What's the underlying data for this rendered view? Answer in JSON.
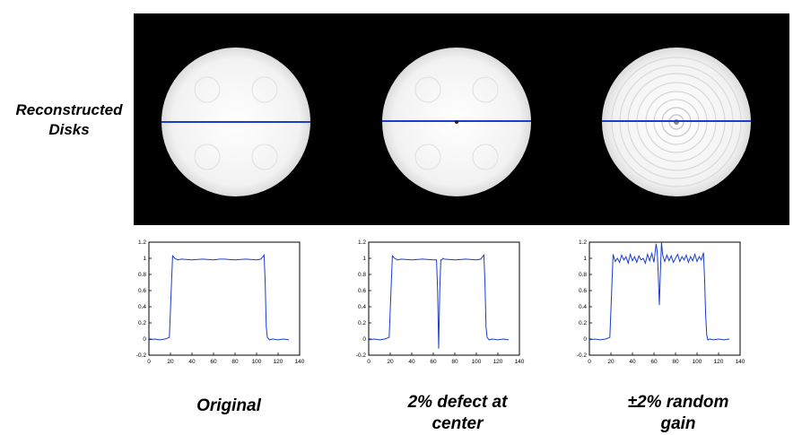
{
  "side_label": {
    "line1": "Reconstructed",
    "line2": "Disks"
  },
  "colors": {
    "profile_line": "#1a3ccf",
    "disk_fill": "#f4f4f4",
    "background": "#000000",
    "axis": "#000000"
  },
  "captions": [
    {
      "line1": "Original",
      "line2": ""
    },
    {
      "line1": "2% defect at",
      "line2": "center"
    },
    {
      "line1": "±2% random",
      "line2": "gain"
    }
  ],
  "chart_data": [
    {
      "type": "line",
      "title": "",
      "xlim": [
        0,
        140
      ],
      "ylim": [
        -0.2,
        1.2
      ],
      "xticks": [
        0,
        20,
        40,
        60,
        80,
        100,
        120,
        140
      ],
      "yticks": [
        -0.2,
        0,
        0.2,
        0.4,
        0.6,
        0.8,
        1,
        1.2
      ],
      "ytick_labels": [
        "-0.2",
        "0",
        "0.2",
        "0.4",
        "0.6",
        "0.8",
        "1",
        "1.2"
      ],
      "x": [
        0,
        5,
        10,
        15,
        19,
        21,
        22,
        24,
        27,
        30,
        40,
        50,
        60,
        66,
        70,
        80,
        90,
        100,
        104,
        107,
        108,
        109,
        110,
        112,
        115,
        120,
        125,
        130
      ],
      "y": [
        -0.01,
        0,
        -0.01,
        0,
        0.02,
        0.7,
        1.03,
        1.0,
        0.98,
        0.99,
        0.98,
        0.99,
        0.98,
        0.99,
        0.99,
        0.98,
        0.99,
        0.98,
        0.99,
        1.04,
        0.7,
        0.15,
        0.02,
        -0.01,
        0,
        -0.01,
        0,
        -0.01
      ]
    },
    {
      "type": "line",
      "title": "",
      "xlim": [
        0,
        140
      ],
      "ylim": [
        -0.2,
        1.2
      ],
      "xticks": [
        0,
        20,
        40,
        60,
        80,
        100,
        120,
        140
      ],
      "yticks": [
        -0.2,
        0,
        0.2,
        0.4,
        0.6,
        0.8,
        1,
        1.2
      ],
      "ytick_labels": [
        "-0.2",
        "0",
        "0.2",
        "0.4",
        "0.6",
        "0.8",
        "1",
        "1.2"
      ],
      "x": [
        0,
        5,
        10,
        15,
        19,
        21,
        22,
        24,
        27,
        30,
        40,
        50,
        60,
        63,
        64,
        65,
        66,
        67,
        68,
        69,
        70,
        80,
        90,
        100,
        104,
        107,
        108,
        109,
        110,
        112,
        115,
        120,
        125,
        130
      ],
      "y": [
        -0.01,
        0,
        -0.01,
        0,
        0.02,
        0.7,
        1.03,
        1.0,
        0.98,
        0.99,
        0.98,
        0.99,
        0.98,
        0.98,
        0.6,
        -0.12,
        0.6,
        0.98,
        0.98,
        1.0,
        0.99,
        0.98,
        0.99,
        0.98,
        0.99,
        1.04,
        0.7,
        0.15,
        0.02,
        -0.01,
        0,
        -0.01,
        0,
        -0.01
      ]
    },
    {
      "type": "line",
      "title": "",
      "xlim": [
        0,
        140
      ],
      "ylim": [
        -0.2,
        1.2
      ],
      "xticks": [
        0,
        20,
        40,
        60,
        80,
        100,
        120,
        140
      ],
      "yticks": [
        -0.2,
        0,
        0.2,
        0.4,
        0.6,
        0.8,
        1,
        1.2
      ],
      "ytick_labels": [
        "-0.2",
        "0",
        "0.2",
        "0.4",
        "0.6",
        "0.8",
        "1",
        "1.2"
      ],
      "x": [
        0,
        5,
        10,
        15,
        19,
        21,
        22,
        24,
        26,
        28,
        30,
        32,
        34,
        36,
        38,
        40,
        42,
        44,
        46,
        48,
        50,
        52,
        54,
        56,
        58,
        60,
        62,
        63,
        64,
        65,
        66,
        67,
        68,
        69,
        70,
        72,
        74,
        76,
        78,
        80,
        82,
        84,
        86,
        88,
        90,
        92,
        94,
        96,
        98,
        100,
        102,
        104,
        106,
        107,
        108,
        109,
        110,
        112,
        115,
        120,
        125,
        130
      ],
      "y": [
        -0.01,
        0,
        -0.01,
        0,
        0.02,
        0.7,
        1.05,
        0.96,
        1.0,
        0.95,
        1.04,
        0.98,
        1.02,
        0.94,
        1.05,
        0.97,
        1.02,
        0.95,
        1.03,
        0.98,
        1.0,
        0.94,
        1.05,
        0.97,
        1.06,
        0.95,
        1.18,
        1.08,
        0.8,
        0.42,
        0.85,
        1.2,
        1.05,
        1.0,
        0.96,
        1.04,
        0.97,
        1.03,
        0.95,
        1.0,
        1.05,
        0.96,
        1.02,
        0.98,
        1.04,
        0.95,
        1.02,
        0.97,
        1.05,
        0.96,
        1.02,
        0.98,
        1.07,
        0.75,
        0.3,
        0.05,
        -0.01,
        0,
        -0.01,
        0,
        -0.01,
        0
      ]
    }
  ]
}
